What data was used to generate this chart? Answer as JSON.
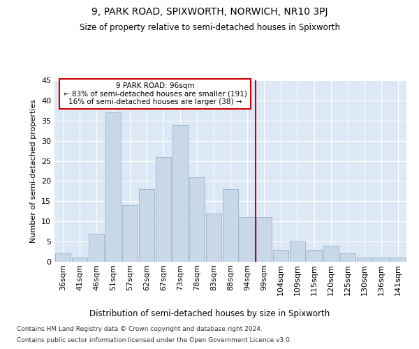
{
  "title1": "9, PARK ROAD, SPIXWORTH, NORWICH, NR10 3PJ",
  "title2": "Size of property relative to semi-detached houses in Spixworth",
  "xlabel": "Distribution of semi-detached houses by size in Spixworth",
  "ylabel": "Number of semi-detached properties",
  "categories": [
    "36sqm",
    "41sqm",
    "46sqm",
    "51sqm",
    "57sqm",
    "62sqm",
    "67sqm",
    "73sqm",
    "78sqm",
    "83sqm",
    "88sqm",
    "94sqm",
    "99sqm",
    "104sqm",
    "109sqm",
    "115sqm",
    "120sqm",
    "125sqm",
    "130sqm",
    "136sqm",
    "141sqm"
  ],
  "values": [
    2,
    1,
    7,
    37,
    14,
    18,
    26,
    34,
    21,
    12,
    18,
    11,
    11,
    3,
    5,
    3,
    4,
    2,
    1,
    1,
    1
  ],
  "bar_color": "#c8d8e8",
  "bar_edge_color": "#a0b8d0",
  "vline_x": 11.5,
  "vline_color": "#cc0000",
  "annotation_title": "9 PARK ROAD: 96sqm",
  "annotation_line1": "← 83% of semi-detached houses are smaller (191)",
  "annotation_line2": "16% of semi-detached houses are larger (38) →",
  "annotation_box_color": "#cc0000",
  "annotation_text_color": "#000000",
  "background_color": "#dce8f5",
  "grid_color": "#ffffff",
  "ylim": [
    0,
    45
  ],
  "yticks": [
    0,
    5,
    10,
    15,
    20,
    25,
    30,
    35,
    40,
    45
  ],
  "footer1": "Contains HM Land Registry data © Crown copyright and database right 2024.",
  "footer2": "Contains public sector information licensed under the Open Government Licence v3.0."
}
